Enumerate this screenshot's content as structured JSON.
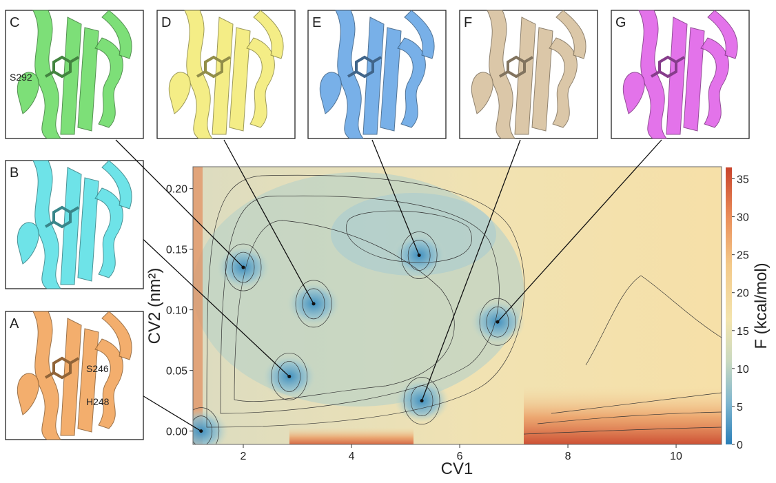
{
  "chart_data": {
    "type": "contour",
    "xlabel": "CV1",
    "ylabel": "CV2 (nm²)",
    "colorbar_label": "F (kcal/mol)",
    "xlim": [
      1.07,
      10.84
    ],
    "ylim": [
      -0.011,
      0.218
    ],
    "xticks": [
      2,
      4,
      6,
      8,
      10
    ],
    "yticks": [
      {
        "value": 0,
        "label": "0.00"
      },
      0.05,
      {
        "value": 0.1,
        "label": "0.10"
      },
      0.15,
      {
        "value": 0.2,
        "label": "0.20"
      }
    ],
    "clim": [
      0,
      36.5
    ],
    "cticks": [
      0,
      5,
      10,
      15,
      20,
      25,
      30,
      35
    ],
    "states": [
      {
        "label": "A",
        "x": 1.22,
        "y": 0.0,
        "color": "#f2a65e",
        "residues": [
          "S246",
          "H248"
        ]
      },
      {
        "label": "B",
        "x": 2.85,
        "y": 0.045,
        "color": "#5fe0e6",
        "residues": []
      },
      {
        "label": "C",
        "x": 2.0,
        "y": 0.135,
        "color": "#6fdc6a",
        "residues": [
          "S292"
        ]
      },
      {
        "label": "D",
        "x": 3.3,
        "y": 0.105,
        "color": "#f3ec7a",
        "residues": []
      },
      {
        "label": "E",
        "x": 5.25,
        "y": 0.145,
        "color": "#6aa8e6",
        "residues": []
      },
      {
        "label": "F",
        "x": 5.3,
        "y": 0.025,
        "color": "#d8c29f",
        "residues": []
      },
      {
        "label": "G",
        "x": 6.7,
        "y": 0.09,
        "color": "#e064e8",
        "residues": []
      }
    ]
  }
}
